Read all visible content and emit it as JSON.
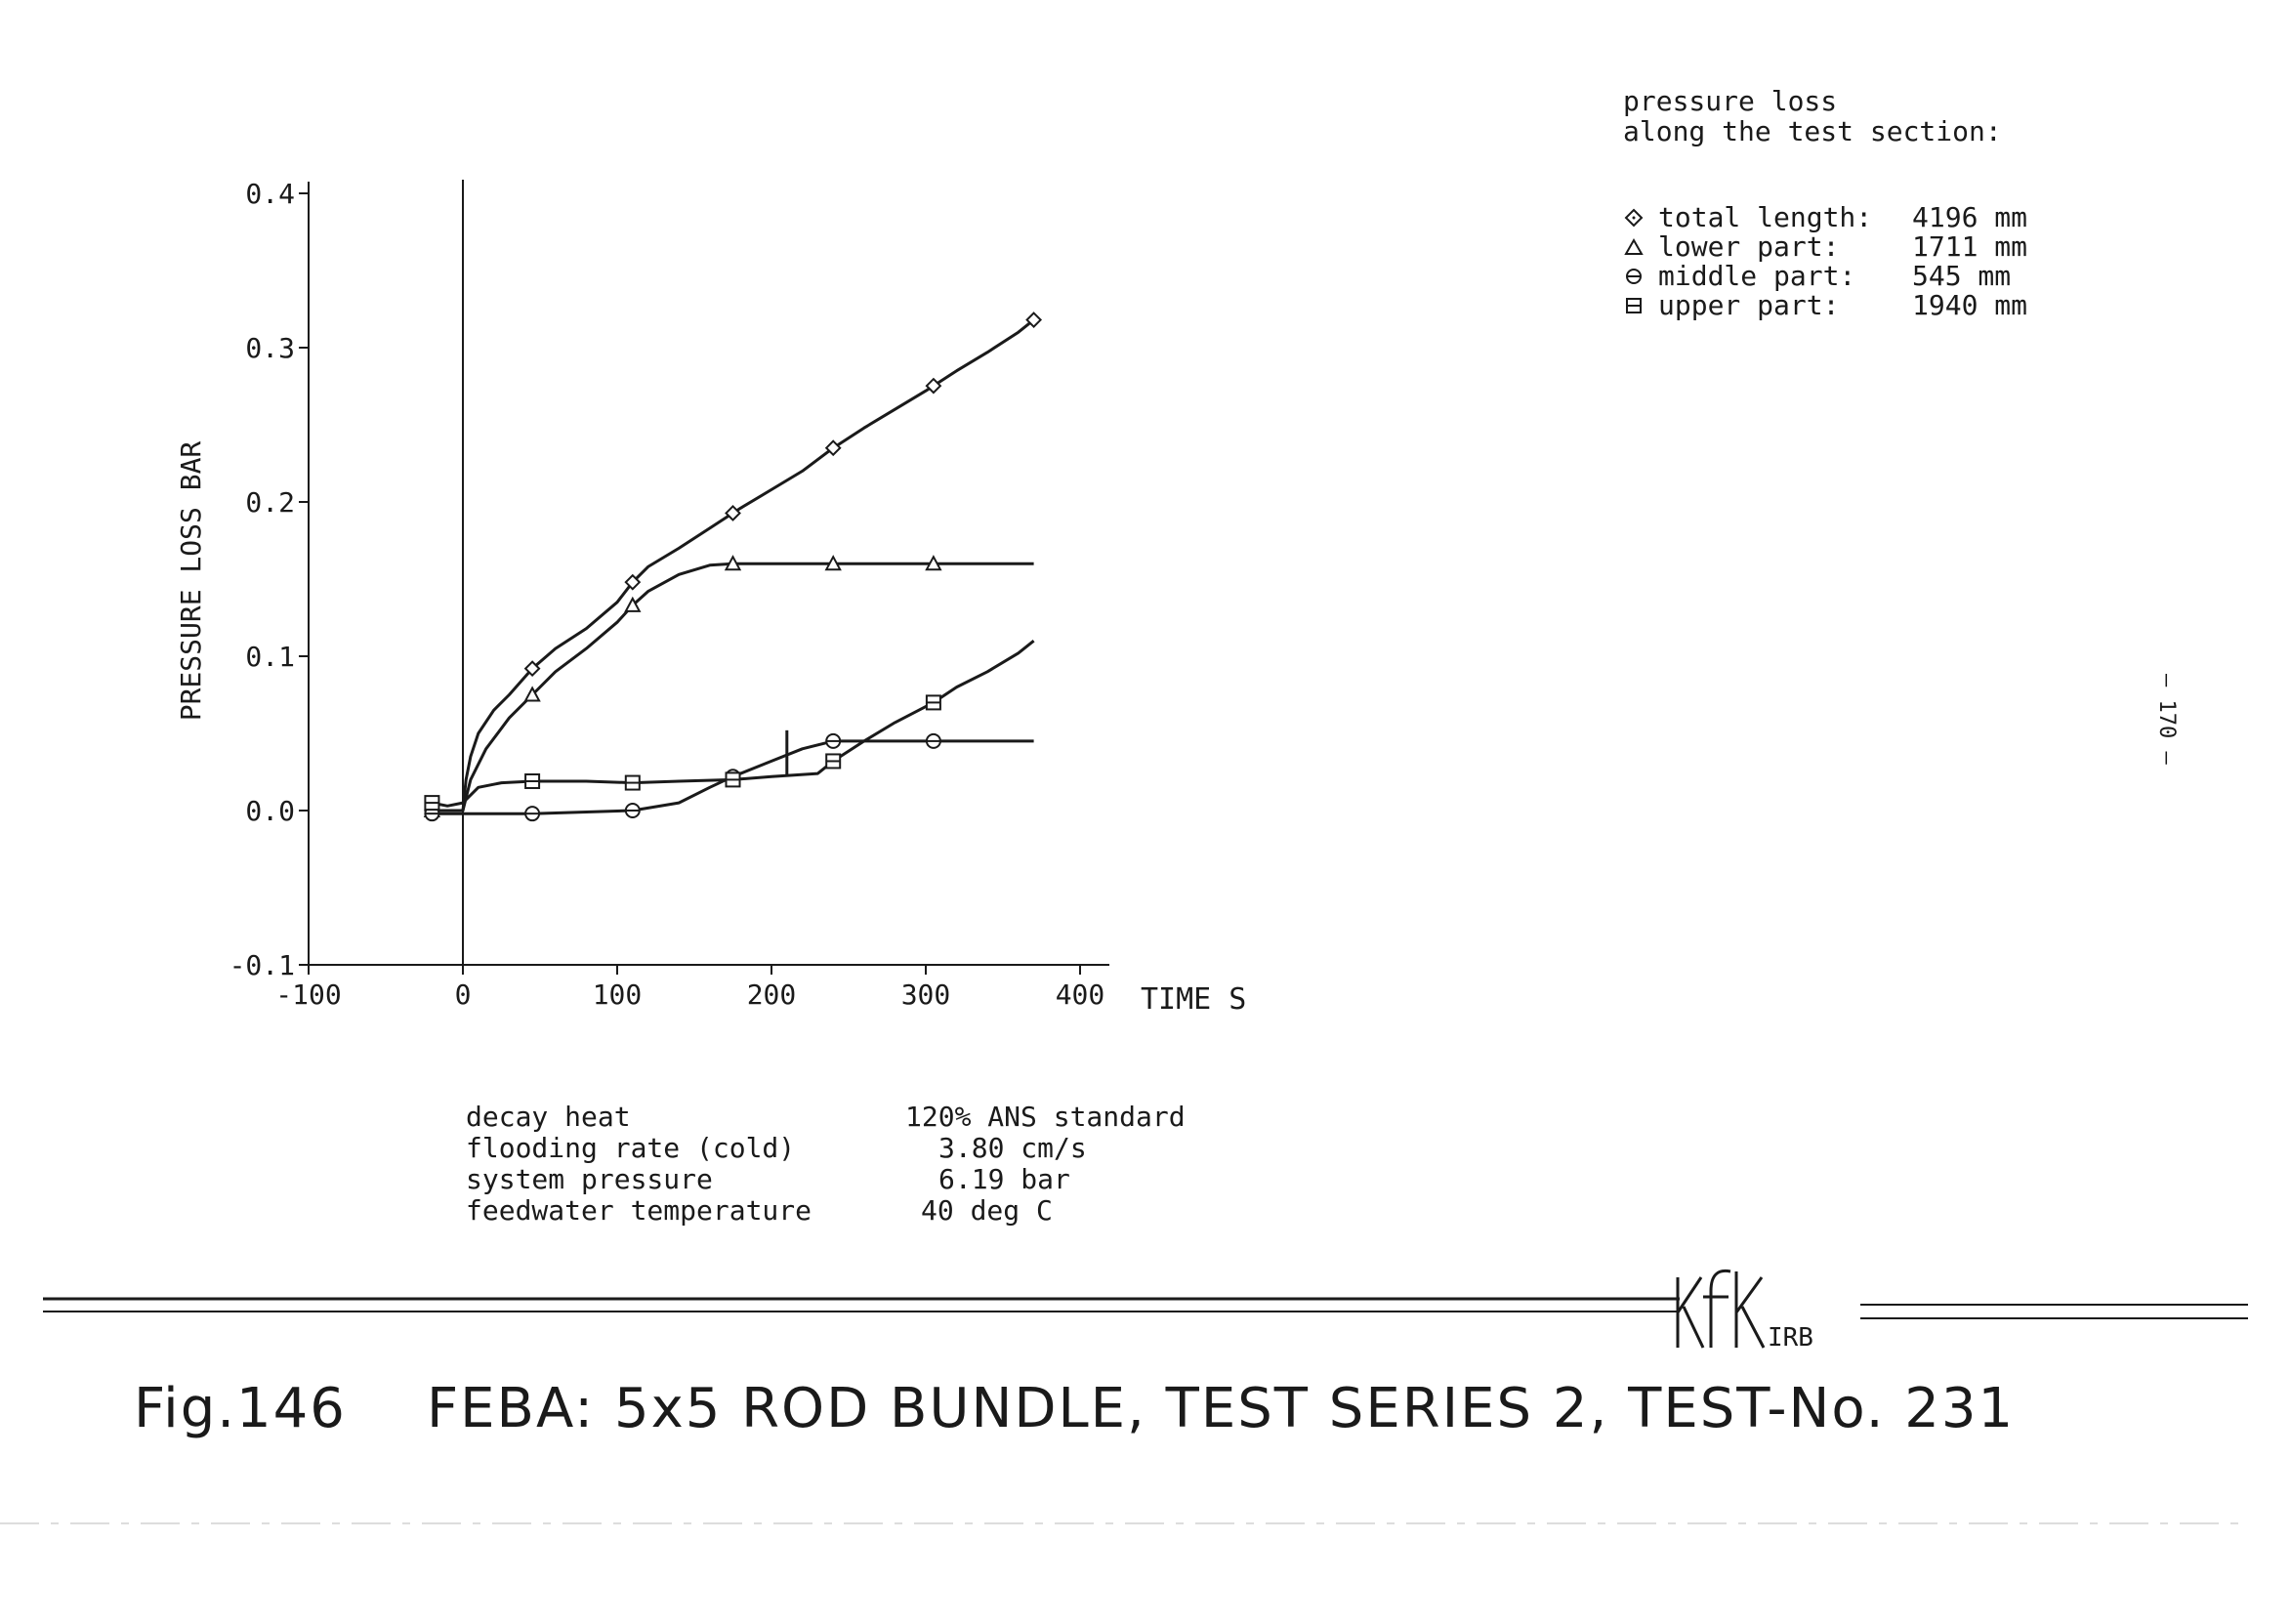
{
  "legend": {
    "title_line1": "pressure loss",
    "title_line2": "along the test section:",
    "items": [
      {
        "symbol": "diamond",
        "label": "total length:",
        "value": "4196 mm"
      },
      {
        "symbol": "triangle",
        "label": "lower part:",
        "value": "1711 mm"
      },
      {
        "symbol": "circle",
        "label": "middle part:",
        "value": "545 mm"
      },
      {
        "symbol": "square",
        "label": "upper part:",
        "value": "1940 mm"
      }
    ]
  },
  "parameters": [
    {
      "label": "decay heat",
      "value": "120% ANS standard"
    },
    {
      "label": "flooding rate (cold)",
      "value": "3.80 cm/s"
    },
    {
      "label": "system pressure",
      "value": "6.19 bar"
    },
    {
      "label": "feedwater temperature",
      "value": "40 deg C"
    }
  ],
  "caption": {
    "fig": "Fig.146",
    "text": "FEBA: 5x5 ROD BUNDLE, TEST SERIES 2, TEST-No. 231"
  },
  "page_number": "— 170 —",
  "logo_text": "KfK IRB",
  "colors": {
    "ink": "#1a1a1a",
    "background": "#ffffff"
  },
  "chart_data": {
    "type": "line",
    "xlabel": "TIME S",
    "ylabel": "PRESSURE LOSS BAR",
    "xlim": [
      -100,
      400
    ],
    "ylim": [
      -0.1,
      0.4
    ],
    "xticks": [
      -100,
      0,
      100,
      200,
      300,
      400
    ],
    "xtick_labels": [
      "-100",
      "0",
      "100",
      "200",
      "300",
      "400"
    ],
    "yticks": [
      -0.1,
      0.0,
      0.1,
      0.2,
      0.3,
      0.4
    ],
    "ytick_labels": [
      "-0.1",
      "0.0",
      "0.1",
      "0.2",
      "0.3",
      "0.4"
    ],
    "grid": false,
    "legend_position": "top-right",
    "series": [
      {
        "name": "total length",
        "marker": "diamond",
        "x": [
          -20,
          0,
          2,
          5,
          10,
          20,
          30,
          45,
          60,
          80,
          100,
          110,
          120,
          140,
          160,
          180,
          200,
          220,
          240,
          260,
          280,
          300,
          320,
          340,
          360,
          370
        ],
        "y": [
          0.0,
          0.0,
          0.02,
          0.035,
          0.05,
          0.065,
          0.075,
          0.092,
          0.105,
          0.118,
          0.135,
          0.148,
          0.158,
          0.17,
          0.183,
          0.196,
          0.208,
          0.22,
          0.235,
          0.248,
          0.26,
          0.272,
          0.285,
          0.297,
          0.31,
          0.318
        ],
        "marker_x": [
          -20,
          45,
          110,
          175,
          240,
          305,
          370
        ]
      },
      {
        "name": "lower part",
        "marker": "triangle",
        "x": [
          -20,
          0,
          5,
          15,
          30,
          45,
          60,
          80,
          100,
          110,
          120,
          140,
          160,
          175,
          200,
          240,
          280,
          305,
          340,
          370
        ],
        "y": [
          0.0,
          0.0,
          0.02,
          0.04,
          0.06,
          0.075,
          0.09,
          0.105,
          0.122,
          0.133,
          0.142,
          0.153,
          0.159,
          0.16,
          0.16,
          0.16,
          0.16,
          0.16,
          0.16,
          0.16
        ],
        "marker_x": [
          -20,
          45,
          110,
          175,
          240,
          305
        ]
      },
      {
        "name": "middle part",
        "marker": "circle",
        "x": [
          -20,
          0,
          45,
          110,
          140,
          160,
          175,
          200,
          220,
          240,
          260,
          305,
          370
        ],
        "y": [
          -0.002,
          -0.002,
          -0.002,
          0.0,
          0.005,
          0.015,
          0.022,
          0.032,
          0.04,
          0.045,
          0.045,
          0.045,
          0.045
        ],
        "marker_x": [
          -20,
          45,
          110,
          175,
          240,
          305
        ]
      },
      {
        "name": "upper part",
        "marker": "square",
        "x": [
          -20,
          -10,
          0,
          10,
          25,
          45,
          80,
          110,
          140,
          175,
          200,
          230,
          240,
          260,
          280,
          305,
          320,
          340,
          360,
          370
        ],
        "y": [
          0.005,
          0.003,
          0.005,
          0.015,
          0.018,
          0.019,
          0.019,
          0.018,
          0.019,
          0.02,
          0.022,
          0.024,
          0.032,
          0.045,
          0.057,
          0.07,
          0.08,
          0.09,
          0.102,
          0.11
        ],
        "marker_x": [
          -20,
          45,
          110,
          175,
          240,
          305
        ]
      }
    ]
  }
}
